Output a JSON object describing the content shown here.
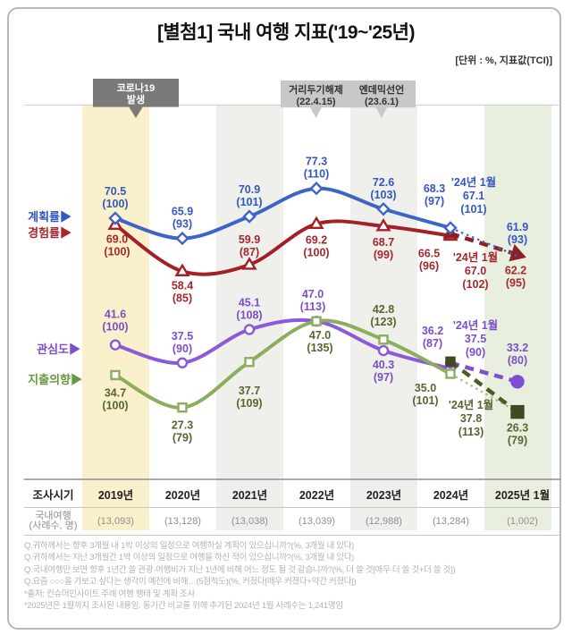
{
  "title": "[별첨1] 국내 여행 지표('19~'25년)",
  "unit_label": "[단위 : %, 지표값(TCI)]",
  "events": [
    {
      "line1": "코로나19",
      "line2": "발생",
      "style": "dark"
    },
    {
      "line1": "거리두기해제",
      "line2": "(22.4.15)",
      "style": "light"
    },
    {
      "line1": "엔데믹선언",
      "line2": "(23.6.1)",
      "style": "light"
    }
  ],
  "legend": [
    {
      "label": "계획률▶",
      "color": "#3557bf"
    },
    {
      "label": "경험률▶",
      "color": "#a3282e"
    },
    {
      "label": "관심도▶",
      "color": "#7c4ec9"
    },
    {
      "label": "지출의향▶",
      "color": "#679a3e"
    }
  ],
  "colors": {
    "plan_line": "#3e64c8",
    "experience_line": "#a32126",
    "interest_line": "#8a5ad8",
    "spending_line": "#8cad5c",
    "spending_dark": "#3e4a22",
    "band_2019": "#faf0cb",
    "band_grey": "#efefec",
    "band_2025": "#e9efdf"
  },
  "chart_data": {
    "type": "line",
    "categories": [
      "2019년",
      "2020년",
      "2021년",
      "2022년",
      "2023년",
      "2024년",
      "2025년 1월"
    ],
    "jan2024_label": "'24년 1월",
    "series": [
      {
        "name": "계획률",
        "marker": "diamond",
        "color": "#3e64c8",
        "values": [
          "70.5",
          "65.9",
          "70.9",
          "77.3",
          "72.6",
          "68.3"
        ],
        "index": [
          100,
          93,
          101,
          110,
          103,
          97
        ],
        "jan2024": {
          "value": "67.1",
          "index": 101
        },
        "jan2025": {
          "value": "61.9",
          "index": 93
        }
      },
      {
        "name": "경험률",
        "marker": "triangle",
        "color": "#a32126",
        "values": [
          "69.0",
          "58.4",
          "59.9",
          "69.2",
          "68.7",
          "66.5"
        ],
        "index": [
          100,
          85,
          87,
          100,
          99,
          96
        ],
        "jan2024": {
          "value": "67.0",
          "index": 102
        },
        "jan2025": {
          "value": "62.2",
          "index": 95
        }
      },
      {
        "name": "관심도",
        "marker": "circle",
        "color": "#8a5ad8",
        "values": [
          "41.6",
          "37.5",
          "45.1",
          "47.0",
          "40.3",
          "36.2"
        ],
        "index": [
          100,
          90,
          108,
          113,
          97,
          87
        ],
        "jan2024": {
          "value": "37.5",
          "index": 90
        },
        "jan2025": {
          "value": "33.2",
          "index": 80
        }
      },
      {
        "name": "지출의향",
        "marker": "square",
        "color": "#8cad5c",
        "values": [
          "34.7",
          "27.3",
          "37.7",
          "47.0",
          "42.8",
          "35.0"
        ],
        "index": [
          100,
          79,
          109,
          135,
          123,
          101
        ],
        "jan2024": {
          "value": "37.8",
          "index": 113
        },
        "jan2025": {
          "value": "26.3",
          "index": 79
        }
      }
    ]
  },
  "table": {
    "header": [
      "조사시기",
      "2019년",
      "2020년",
      "2021년",
      "2022년",
      "2023년",
      "2024년",
      "2025년 1월"
    ],
    "row_label_line1": "국내여행",
    "row_label_line2": "(사례수, 명)",
    "values": [
      "(13,093)",
      "(13,128)",
      "(13,038)",
      "(13,039)",
      "(12,988)",
      "(13,284)",
      "(1,002)"
    ]
  },
  "footnotes": [
    "Q.귀하께서는 향후 3개월 내 1박 이상의 일정으로 여행하실 계획이 있으십니까?(%, 3개월 내 있다)",
    "Q.귀하께서는 지난 3개월간 1박 이상의 일정으로 여행을 하신 적이 있으십니까?(%, 3개월 내 있다)",
    "Q.국내여행만 보면 향후 1년간 쓸 관광·여행비가 지난 1년에 비해 어느 정도 될 것 같습니까?(%, 더 쓸 것[매우 더 쓸 것+더 쓸 것])",
    "Q.요즘 ○○○을 가보고 싶다는 생각이 예전에 비해…(5점척도)(%, 커졌다[매우 커졌다+약간 커졌다])",
    "*출처: 컨슈머인사이트 주례 여행 행태 및 계획 조사",
    "*2025년은 1월까지 조사된 내용임. 동기간 비교를 위해 추가된 2024년 1월 사례수는 1,241명임"
  ]
}
